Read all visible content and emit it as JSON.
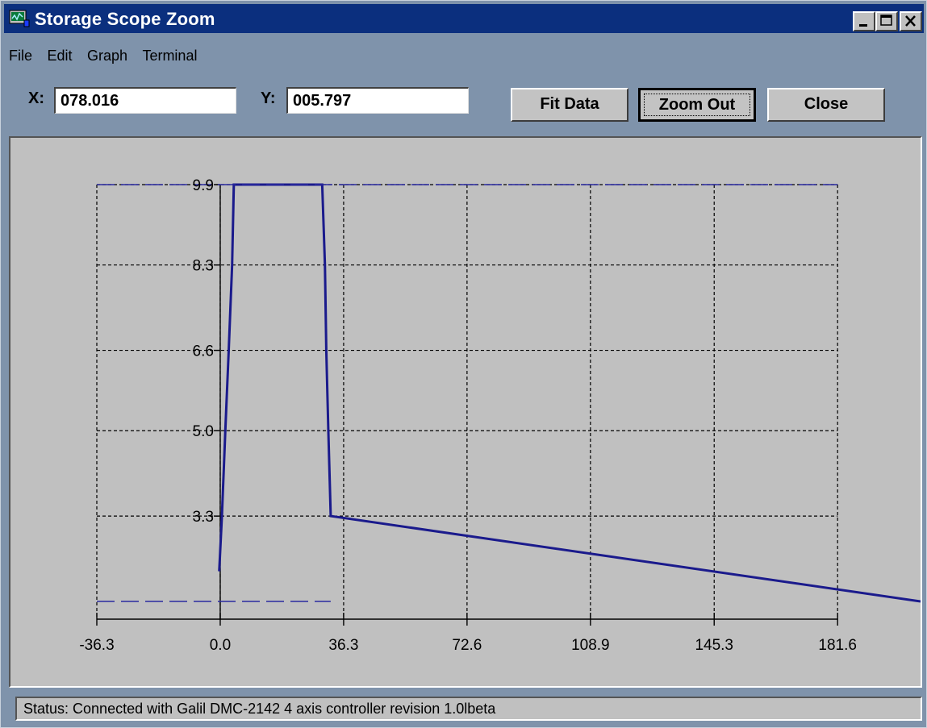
{
  "window": {
    "title": "Storage Scope Zoom",
    "icon": "scope-app-icon",
    "controls": [
      "minimize-icon",
      "maximize-icon",
      "close-icon"
    ]
  },
  "menu": {
    "items": [
      "File",
      "Edit",
      "Graph",
      "Terminal"
    ]
  },
  "readout": {
    "x_label": "X:",
    "x_value": "078.016",
    "y_label": "Y:",
    "y_value": "005.797"
  },
  "buttons": {
    "fit_data": "Fit Data",
    "zoom_out": "Zoom Out",
    "close": "Close"
  },
  "chart_data": {
    "type": "line",
    "title": "",
    "xlabel": "",
    "ylabel": "",
    "xlim": [
      -36.3,
      206.0
    ],
    "ylim": [
      1.6,
      9.9
    ],
    "grid": true,
    "x_ticks": [
      "-36.3",
      "0.0",
      "36.3",
      "72.6",
      "108.9",
      "145.3",
      "181.6"
    ],
    "x_tick_values": [
      -36.3,
      0.0,
      36.3,
      72.6,
      108.9,
      145.3,
      181.6
    ],
    "y_ticks": [
      "9.9",
      "8.3",
      "6.6",
      "5.0",
      "3.3"
    ],
    "y_tick_values": [
      9.9,
      8.3,
      6.6,
      5.0,
      3.3
    ],
    "series": [
      {
        "style": "solid",
        "color": "#1a1a8c",
        "x": [
          -0.3,
          0.5,
          1.5,
          2.5,
          3.5,
          4.0,
          30.0,
          30.8,
          31.2,
          31.8,
          32.5,
          206.0
        ],
        "y": [
          2.2,
          3.3,
          5.0,
          6.6,
          8.3,
          9.9,
          9.9,
          8.3,
          6.6,
          5.0,
          3.3,
          1.6
        ]
      },
      {
        "style": "dashed",
        "color": "#2a2aa0",
        "x": [
          -36.3,
          32.5
        ],
        "y": [
          1.6,
          1.6
        ]
      },
      {
        "style": "dashed",
        "color": "#2a2aa0",
        "x": [
          -36.3,
          181.6
        ],
        "y": [
          9.9,
          9.9
        ]
      }
    ]
  },
  "status": {
    "text": "Status: Connected with Galil DMC-2142 4 axis controller revision 1.0lbeta"
  }
}
